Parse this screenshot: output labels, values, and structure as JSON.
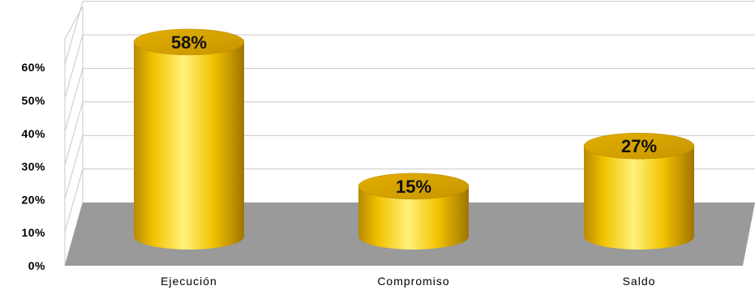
{
  "chart_data": {
    "type": "bar",
    "style": "3d-cylinder",
    "categories": [
      "Ejecución",
      "Compromiso",
      "Saldo"
    ],
    "values": [
      58,
      15,
      27
    ],
    "data_labels": [
      "58%",
      "15%",
      "27%"
    ],
    "yticks": [
      "0%",
      "10%",
      "20%",
      "30%",
      "40%",
      "50%",
      "60%"
    ],
    "ylim": [
      0,
      70
    ],
    "grid": true,
    "bar_color": "#F2C200",
    "bar_highlight": "#FFF27A",
    "floor_color": "#9A9A9A",
    "title": "",
    "xlabel": "",
    "ylabel": ""
  }
}
